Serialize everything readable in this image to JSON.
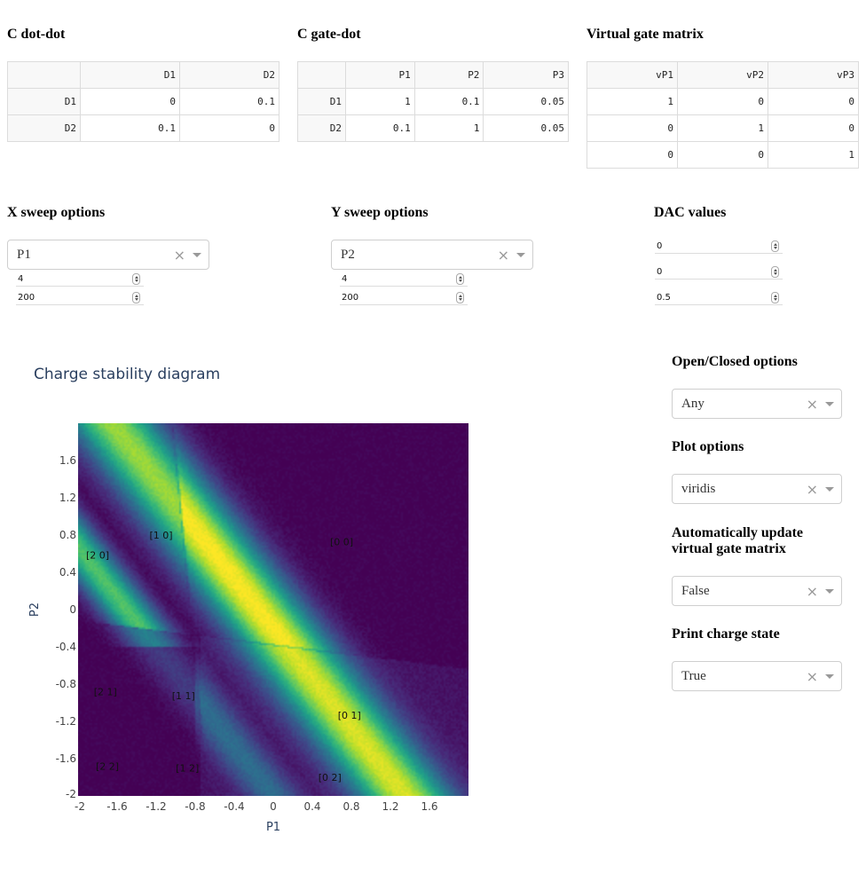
{
  "c_dot_dot": {
    "title": "C dot-dot",
    "columns": [
      "",
      "D1",
      "D2"
    ],
    "rows": [
      [
        "D1",
        "0",
        "0.1"
      ],
      [
        "D2",
        "0.1",
        "0"
      ]
    ]
  },
  "c_gate_dot": {
    "title": "C gate-dot",
    "columns": [
      "",
      "P1",
      "P2",
      "P3"
    ],
    "rows": [
      [
        "D1",
        "1",
        "0.1",
        "0.05"
      ],
      [
        "D2",
        "0.1",
        "1",
        "0.05"
      ]
    ]
  },
  "virtual_gate": {
    "title": "Virtual gate matrix",
    "columns": [
      "vP1",
      "vP2",
      "vP3"
    ],
    "rows": [
      [
        "1",
        "0",
        "0"
      ],
      [
        "0",
        "1",
        "0"
      ],
      [
        "0",
        "0",
        "1"
      ]
    ]
  },
  "x_sweep": {
    "title": "X sweep options",
    "gate": "P1",
    "range": "4",
    "resolution": "200"
  },
  "y_sweep": {
    "title": "Y sweep options",
    "gate": "P2",
    "range": "4",
    "resolution": "200"
  },
  "dac": {
    "title": "DAC values",
    "values": [
      "0",
      "0",
      "0.5"
    ]
  },
  "options": {
    "open_closed": {
      "title": "Open/Closed options",
      "value": "Any"
    },
    "plot": {
      "title": "Plot options",
      "value": "viridis"
    },
    "auto_update": {
      "title_line1": "Automatically update",
      "title_line2": "virtual gate matrix",
      "value": "False"
    },
    "print_state": {
      "title": "Print charge state",
      "value": "True"
    }
  },
  "icons": {
    "clear": "clear-x-icon",
    "dropdown": "chevron-down-icon",
    "spinner": "spinner-icon"
  },
  "chart_data": {
    "type": "heatmap",
    "title": "Charge stability diagram",
    "xlabel": "P1",
    "ylabel": "P2",
    "xlim": [
      -2,
      2
    ],
    "ylim": [
      -2,
      2
    ],
    "colorscale": "viridis",
    "xticks": [
      "-2",
      "-1.6",
      "-1.2",
      "-0.8",
      "-0.4",
      "0",
      "0.4",
      "0.8",
      "1.2",
      "1.6"
    ],
    "yticks": [
      "-2",
      "-1.6",
      "-1.2",
      "-0.8",
      "-0.4",
      "0",
      "0.4",
      "0.8",
      "1.2",
      "1.6"
    ],
    "charge_states": [
      {
        "label": "[2 0]",
        "x": -1.8,
        "y": 0.55
      },
      {
        "label": "[1 0]",
        "x": -1.15,
        "y": 0.76
      },
      {
        "label": "[0 0]",
        "x": 0.7,
        "y": 0.69
      },
      {
        "label": "[2 1]",
        "x": -1.72,
        "y": -0.92
      },
      {
        "label": "[1 1]",
        "x": -0.92,
        "y": -0.96
      },
      {
        "label": "[0 1]",
        "x": 0.78,
        "y": -1.17
      },
      {
        "label": "[2 2]",
        "x": -1.7,
        "y": -1.72
      },
      {
        "label": "[1 2]",
        "x": -0.88,
        "y": -1.74
      },
      {
        "label": "[0 2]",
        "x": 0.58,
        "y": -1.84
      }
    ]
  }
}
